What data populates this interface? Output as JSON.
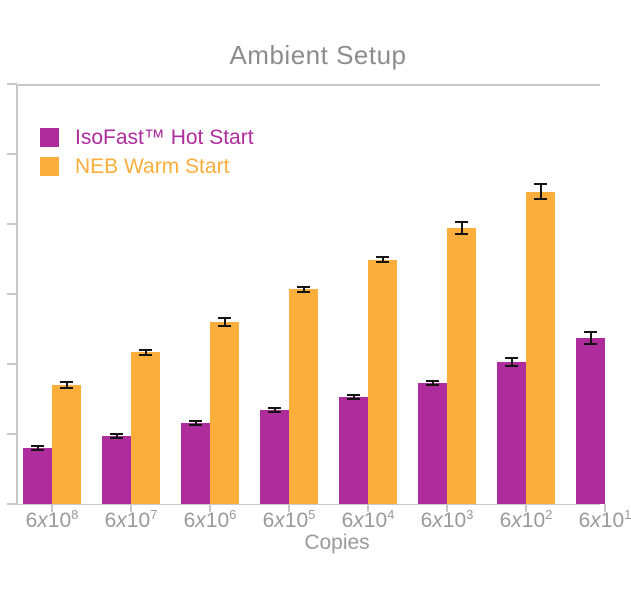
{
  "title": "Ambient Setup",
  "legend": [
    {
      "label": "IsoFast™ Hot Start",
      "color": "#af2c9d"
    },
    {
      "label": "NEB Warm Start",
      "color": "#fbae3c"
    }
  ],
  "colors": {
    "bar_magenta": "#af2c9d",
    "bar_orange": "#fbae3c",
    "axis_line": "#c8c8c8",
    "title_text": "#8d8d8d",
    "axis_text": "#9a9a9a",
    "error_bar": "#141414"
  },
  "chart_data": {
    "type": "bar",
    "title": "Ambient Setup",
    "xlabel": "Copies",
    "ylabel": "",
    "categories": [
      "6x10^8",
      "6x10^7",
      "6x10^6",
      "6x10^5",
      "6x10^4",
      "6x10^3",
      "6x10^2",
      "6x10^1"
    ],
    "y_axis": {
      "tick_labels_visible": false,
      "units": "axis-tick units (y tick labels cropped out of frame)",
      "ylim": [
        0,
        6
      ],
      "tick_interval": 1
    },
    "grid": false,
    "legend_position": "top-left",
    "series": [
      {
        "name": "IsoFast™ Hot Start",
        "color": "#af2c9d",
        "values": [
          0.8,
          0.97,
          1.16,
          1.34,
          1.53,
          1.73,
          2.03,
          2.37
        ],
        "errors": [
          0.03,
          0.03,
          0.03,
          0.03,
          0.03,
          0.03,
          0.06,
          0.085
        ]
      },
      {
        "name": "NEB Warm Start",
        "color": "#fbae3c",
        "values": [
          1.7,
          2.17,
          2.6,
          3.07,
          3.49,
          3.94,
          4.46,
          null
        ],
        "errors": [
          0.04,
          0.035,
          0.055,
          0.035,
          0.035,
          0.085,
          0.105,
          null
        ]
      }
    ]
  }
}
